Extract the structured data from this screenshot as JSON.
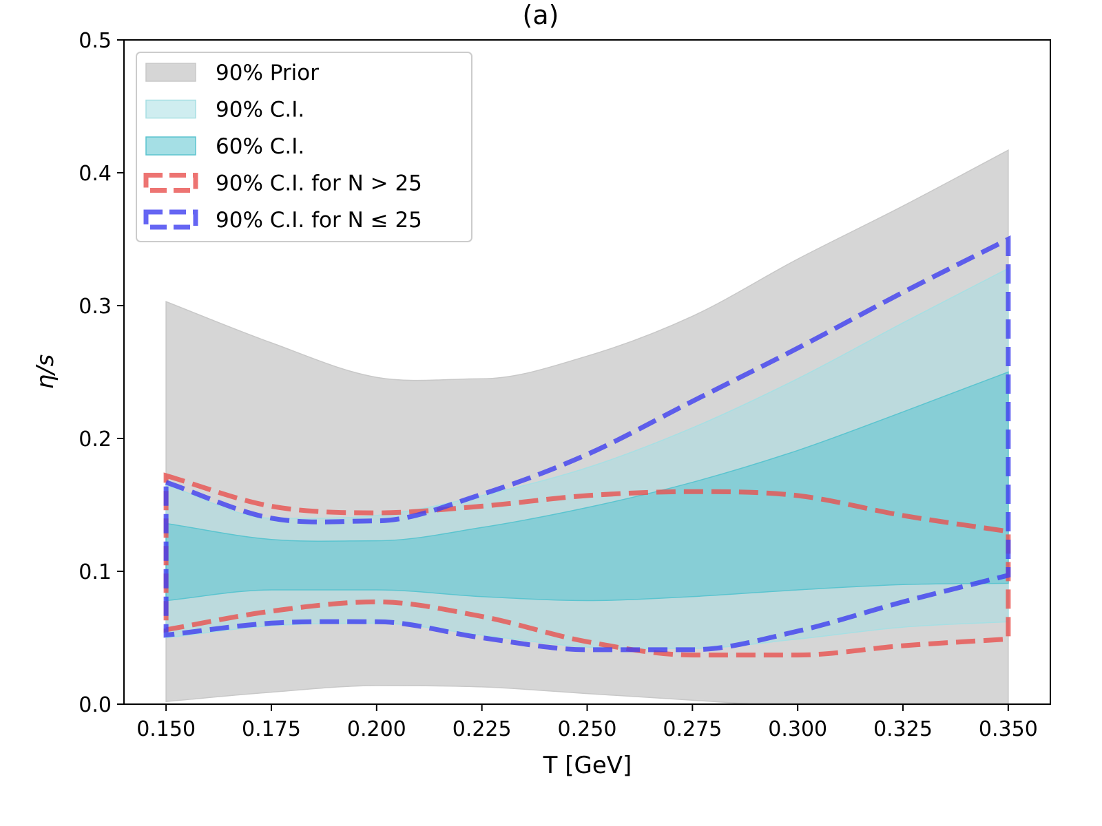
{
  "chart_data": {
    "type": "area",
    "title": "(a)",
    "xlabel": "T [GeV]",
    "ylabel": "η/s",
    "xlim": [
      0.14,
      0.36
    ],
    "ylim": [
      0.0,
      0.5
    ],
    "grid": false,
    "legend_position": "top-left",
    "x_ticks": [
      0.15,
      0.175,
      0.2,
      0.225,
      0.25,
      0.275,
      0.3,
      0.325,
      0.35
    ],
    "x_tick_labels": [
      "0.150",
      "0.175",
      "0.200",
      "0.225",
      "0.250",
      "0.275",
      "0.300",
      "0.325",
      "0.350"
    ],
    "y_ticks": [
      0.0,
      0.1,
      0.2,
      0.3,
      0.4,
      0.5
    ],
    "y_tick_labels": [
      "0.0",
      "0.1",
      "0.2",
      "0.3",
      "0.4",
      "0.5"
    ],
    "x": [
      0.15,
      0.175,
      0.2,
      0.225,
      0.25,
      0.275,
      0.3,
      0.325,
      0.35
    ],
    "series": [
      {
        "name": "90% Prior",
        "kind": "band",
        "color": "#c8c8c8",
        "opacity": 0.75,
        "lower": [
          0.002,
          0.009,
          0.014,
          0.013,
          0.008,
          0.003,
          -0.002,
          -0.005,
          -0.006
        ],
        "upper": [
          0.303,
          0.272,
          0.246,
          0.245,
          0.262,
          0.292,
          0.335,
          0.375,
          0.417
        ]
      },
      {
        "name": "90% C.I.",
        "kind": "band",
        "color": "#a7dfe3",
        "opacity": 0.55,
        "lower": [
          0.05,
          0.059,
          0.061,
          0.052,
          0.043,
          0.042,
          0.049,
          0.058,
          0.062
        ],
        "upper": [
          0.165,
          0.14,
          0.142,
          0.157,
          0.178,
          0.208,
          0.245,
          0.287,
          0.328
        ]
      },
      {
        "name": "60% C.I.",
        "kind": "band",
        "color": "#5bc4cf",
        "opacity": 0.55,
        "lower": [
          0.078,
          0.086,
          0.086,
          0.081,
          0.078,
          0.081,
          0.086,
          0.09,
          0.091
        ],
        "upper": [
          0.136,
          0.124,
          0.123,
          0.133,
          0.148,
          0.167,
          0.191,
          0.22,
          0.25
        ]
      },
      {
        "name": "90% C.I. for N > 25",
        "kind": "dashed-outline",
        "color": "#e8514f",
        "lower": [
          0.056,
          0.07,
          0.077,
          0.066,
          0.047,
          0.037,
          0.037,
          0.044,
          0.049
        ],
        "upper": [
          0.172,
          0.149,
          0.144,
          0.149,
          0.157,
          0.16,
          0.157,
          0.142,
          0.13
        ]
      },
      {
        "name": "90% C.I. for N ≤ 25",
        "kind": "dashed-outline",
        "color": "#3f3ff0",
        "lower": [
          0.052,
          0.061,
          0.062,
          0.05,
          0.041,
          0.041,
          0.055,
          0.077,
          0.097
        ],
        "upper": [
          0.167,
          0.14,
          0.138,
          0.158,
          0.188,
          0.228,
          0.268,
          0.31,
          0.35
        ]
      }
    ],
    "legend": [
      {
        "label": "90% Prior"
      },
      {
        "label": "90% C.I."
      },
      {
        "label": "60% C.I."
      },
      {
        "label": "90% C.I. for N  >  25"
      },
      {
        "label": "90% C.I. for N  ≤  25"
      }
    ]
  }
}
